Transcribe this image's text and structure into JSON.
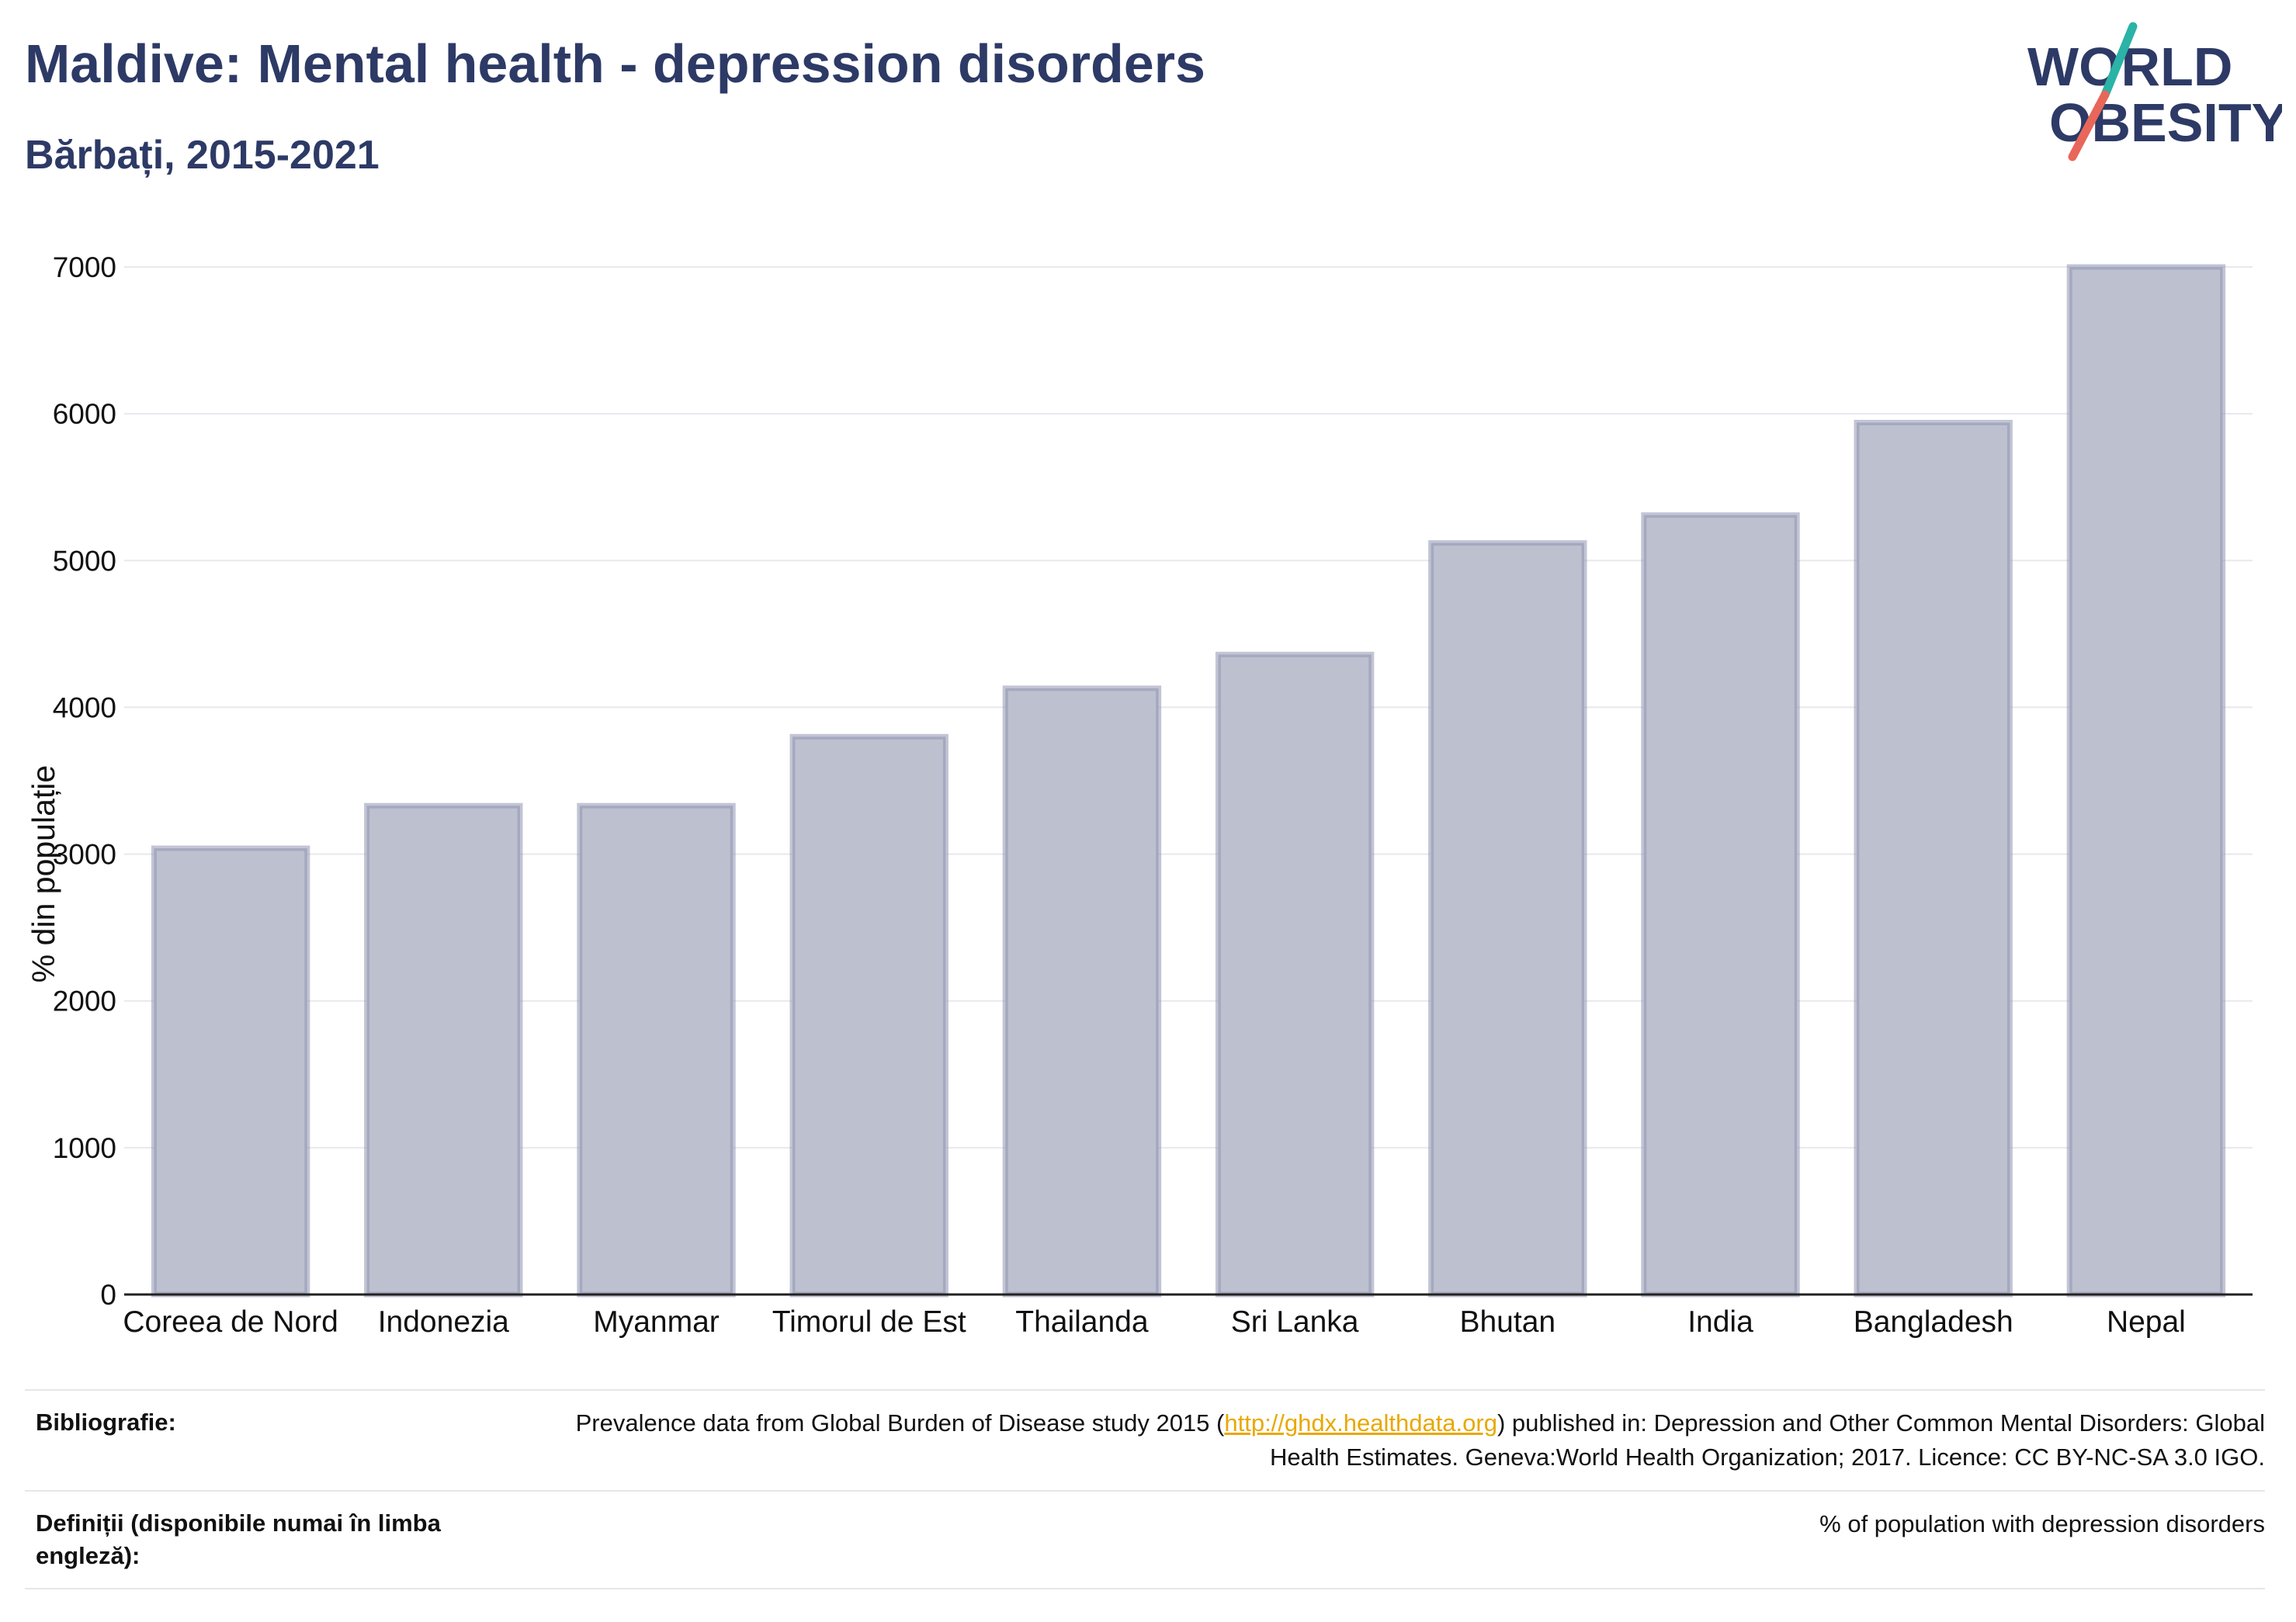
{
  "header": {
    "title": "Maldive: Mental health - depression disorders",
    "subtitle": "Bărbați, 2015-2021"
  },
  "logo": {
    "line1": "WORLD",
    "line2": "OBESITY",
    "accent_teal": "#2ab3a6",
    "accent_coral": "#e8675a",
    "text_color": "#2d3a66"
  },
  "chart_data": {
    "type": "bar",
    "categories": [
      "Coreea de Nord",
      "Indonezia",
      "Myanmar",
      "Timorul de Est",
      "Thailanda",
      "Sri Lanka",
      "Bhutan",
      "India",
      "Bangladesh",
      "Nepal"
    ],
    "values": [
      3040,
      3330,
      3330,
      3800,
      4130,
      4360,
      5120,
      5310,
      5940,
      7000
    ],
    "title": "Maldive: Mental health - depression disorders",
    "subtitle": "Bărbați, 2015-2021",
    "xlabel": "",
    "ylabel": "% din populație",
    "ylim": [
      0,
      7000
    ],
    "yticks": [
      0,
      1000,
      2000,
      3000,
      4000,
      5000,
      6000,
      7000
    ],
    "grid": true,
    "bar_fill": "#bdc0cf",
    "bar_stroke": "#9196b3"
  },
  "footer": {
    "bibliography_label": "Bibliografie:",
    "bibliography_pre": "Prevalence data from Global Burden of Disease study 2015 (",
    "bibliography_link": "http://ghdx.healthdata.org",
    "bibliography_post": ") published in: Depression and Other Common Mental Disorders: Global Health Estimates. Geneva:World Health Organization; 2017. Licence: CC BY-NC-SA 3.0 IGO.",
    "definitions_label": "Definiții (disponibile numai în limba engleză):",
    "definitions_value": "% of population with depression disorders"
  }
}
